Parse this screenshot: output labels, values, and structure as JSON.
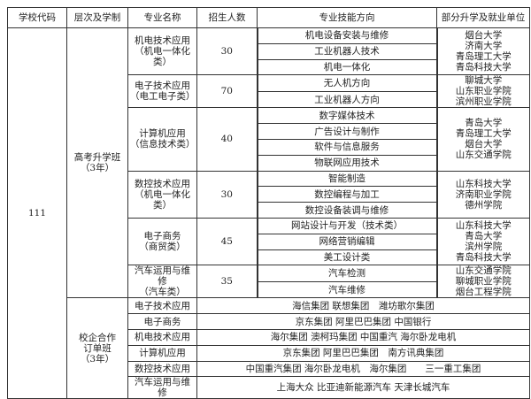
{
  "headers": [
    "学校代码",
    "层次及学制",
    "专业名称",
    "招生人数",
    "专业技能方向",
    "部分升学及就业单位"
  ],
  "school_code": "111",
  "gaokao": {
    "level": "高考升学班\n（3年）",
    "majors": [
      {
        "name": "机电技术应用\n（机电一体化\n类）",
        "count": "30",
        "skills": [
          "机电设备安装与维修",
          "工业机器人技术",
          "机电一体化"
        ],
        "destinations": "烟台大学\n济南大学\n青岛理工大学\n青岛科技大学"
      },
      {
        "name": "电子技术应用\n（电工电子类）",
        "count": "70",
        "skills": [
          "无人机方向",
          "工业机器人方向"
        ],
        "destinations": "聊城大学\n山东职业学院\n滨州职业学院"
      },
      {
        "name": "计算机应用\n（信息技术类）",
        "count": "40",
        "skills": [
          "数字媒体技术",
          "广告设计与制作",
          "软件与信息服务",
          "物联网应用技术"
        ],
        "destinations": "青岛大学\n青岛理工大学\n烟台大学\n山东交通学院"
      },
      {
        "name": "数控技术应用\n（机电一体化\n类）",
        "count": "30",
        "skills": [
          "智能制造",
          "数控编程与加工",
          "数控设备装调与维修"
        ],
        "destinations": "山东科技大学\n济南职业学院\n德州学院"
      },
      {
        "name": "电子商务\n（商贸类）",
        "count": "45",
        "skills": [
          "网站设计与开发（技术类）",
          "网络营销编辑",
          "美工设计类"
        ],
        "destinations": "山东科技大学\n青岛大学\n滨州学院\n青岛科技大学"
      },
      {
        "name": "汽车运用与维修\n（汽车类）",
        "count": "35",
        "skills": [
          "汽车检测",
          "汽车维修"
        ],
        "destinations": "山东交通学院\n聊城职业学院\n烟台工程学院"
      }
    ]
  },
  "order_class": {
    "level": "校企合作\n订单班\n（3年）",
    "rows": [
      {
        "major": "电子技术应用",
        "companies": "海信集团 联想集团　潍坊歌尔集团"
      },
      {
        "major": "电子商务",
        "companies": "京东集团 阿里巴巴集团 中国银行"
      },
      {
        "major": "机电技术应用",
        "companies": "海尔集团 澳柯玛集团 中国重汽 海尔卧龙电机"
      },
      {
        "major": "计算机应用",
        "companies": "京东集团 阿里巴巴集团　南方讯典集团"
      },
      {
        "major": "数控技术应用",
        "companies": "中国重汽集团 海尔卧龙电机　海尔集团　　三一重工集团"
      },
      {
        "major": "汽车运用与维修",
        "companies": "上海大众 比亚迪新能源汽车 天津长城汽车"
      }
    ]
  }
}
